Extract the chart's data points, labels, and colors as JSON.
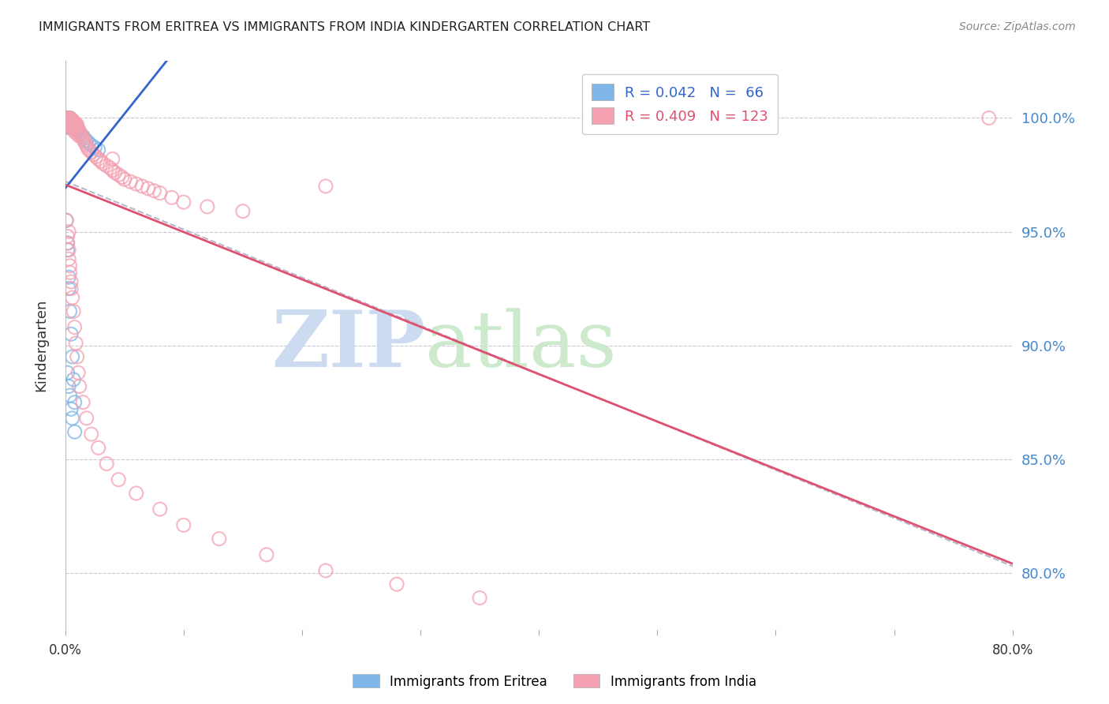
{
  "title": "IMMIGRANTS FROM ERITREA VS IMMIGRANTS FROM INDIA KINDERGARTEN CORRELATION CHART",
  "source": "Source: ZipAtlas.com",
  "ylabel": "Kindergarten",
  "ytick_labels": [
    "100.0%",
    "95.0%",
    "90.0%",
    "85.0%",
    "80.0%"
  ],
  "ytick_values": [
    1.0,
    0.95,
    0.9,
    0.85,
    0.8
  ],
  "xlim": [
    0.0,
    0.8
  ],
  "ylim": [
    0.775,
    1.025
  ],
  "R_eritrea": 0.042,
  "N_eritrea": 66,
  "R_india": 0.409,
  "N_india": 123,
  "color_eritrea": "#7EB6E8",
  "color_india": "#F4A0B0",
  "trend_color_eritrea": "#3366CC",
  "trend_color_india": "#E05070",
  "trend_color_dash": "#B8B8CC",
  "background_color": "#ffffff",
  "watermark_zip": "ZIP",
  "watermark_atlas": "atlas",
  "watermark_color_zip": "#C8D8F0",
  "watermark_color_atlas": "#D0E8D0",
  "eritrea_x": [
    0.001,
    0.001,
    0.001,
    0.001,
    0.001,
    0.002,
    0.002,
    0.002,
    0.002,
    0.002,
    0.002,
    0.002,
    0.003,
    0.003,
    0.003,
    0.003,
    0.003,
    0.003,
    0.004,
    0.004,
    0.004,
    0.004,
    0.004,
    0.005,
    0.005,
    0.005,
    0.005,
    0.006,
    0.006,
    0.006,
    0.006,
    0.007,
    0.007,
    0.007,
    0.008,
    0.008,
    0.009,
    0.009,
    0.01,
    0.01,
    0.011,
    0.012,
    0.013,
    0.015,
    0.016,
    0.018,
    0.02,
    0.022,
    0.025,
    0.028,
    0.001,
    0.002,
    0.002,
    0.003,
    0.003,
    0.004,
    0.005,
    0.006,
    0.007,
    0.008,
    0.002,
    0.003,
    0.004,
    0.005,
    0.006,
    0.008
  ],
  "eritrea_y": [
    1.0,
    1.0,
    0.999,
    0.998,
    0.997,
    1.0,
    1.0,
    0.999,
    0.999,
    0.998,
    0.997,
    0.996,
    1.0,
    0.999,
    0.999,
    0.998,
    0.997,
    0.996,
    1.0,
    0.999,
    0.998,
    0.997,
    0.996,
    0.999,
    0.998,
    0.997,
    0.996,
    0.999,
    0.998,
    0.997,
    0.996,
    0.998,
    0.997,
    0.996,
    0.997,
    0.996,
    0.997,
    0.996,
    0.996,
    0.995,
    0.995,
    0.994,
    0.993,
    0.992,
    0.991,
    0.99,
    0.989,
    0.988,
    0.987,
    0.986,
    0.955,
    0.945,
    0.942,
    0.93,
    0.925,
    0.915,
    0.905,
    0.895,
    0.885,
    0.875,
    0.888,
    0.882,
    0.878,
    0.872,
    0.868,
    0.862
  ],
  "india_x": [
    0.001,
    0.001,
    0.001,
    0.001,
    0.001,
    0.002,
    0.002,
    0.002,
    0.002,
    0.002,
    0.002,
    0.002,
    0.002,
    0.002,
    0.002,
    0.003,
    0.003,
    0.003,
    0.003,
    0.003,
    0.003,
    0.003,
    0.004,
    0.004,
    0.004,
    0.004,
    0.004,
    0.004,
    0.005,
    0.005,
    0.005,
    0.005,
    0.005,
    0.006,
    0.006,
    0.006,
    0.006,
    0.007,
    0.007,
    0.007,
    0.008,
    0.008,
    0.008,
    0.009,
    0.009,
    0.01,
    0.01,
    0.011,
    0.012,
    0.013,
    0.014,
    0.015,
    0.016,
    0.017,
    0.018,
    0.019,
    0.02,
    0.022,
    0.024,
    0.026,
    0.028,
    0.03,
    0.032,
    0.035,
    0.038,
    0.04,
    0.042,
    0.045,
    0.048,
    0.05,
    0.055,
    0.06,
    0.065,
    0.07,
    0.075,
    0.08,
    0.09,
    0.1,
    0.12,
    0.15,
    0.001,
    0.002,
    0.002,
    0.003,
    0.003,
    0.004,
    0.004,
    0.005,
    0.005,
    0.006,
    0.007,
    0.008,
    0.009,
    0.01,
    0.011,
    0.012,
    0.015,
    0.018,
    0.022,
    0.028,
    0.035,
    0.045,
    0.06,
    0.08,
    0.1,
    0.13,
    0.17,
    0.22,
    0.28,
    0.35,
    0.002,
    0.003,
    0.004,
    0.003,
    0.22,
    0.04,
    0.78,
    0.005,
    0.006,
    0.007,
    0.008,
    0.01,
    0.012
  ],
  "india_y": [
    1.0,
    1.0,
    1.0,
    0.999,
    0.998,
    1.0,
    1.0,
    1.0,
    0.999,
    0.999,
    0.999,
    0.998,
    0.998,
    0.997,
    0.996,
    1.0,
    0.999,
    0.999,
    0.999,
    0.998,
    0.998,
    0.997,
    1.0,
    0.999,
    0.999,
    0.998,
    0.998,
    0.997,
    0.999,
    0.999,
    0.998,
    0.998,
    0.997,
    0.999,
    0.998,
    0.998,
    0.997,
    0.998,
    0.997,
    0.996,
    0.998,
    0.997,
    0.996,
    0.997,
    0.996,
    0.997,
    0.996,
    0.995,
    0.994,
    0.993,
    0.992,
    0.991,
    0.99,
    0.989,
    0.988,
    0.987,
    0.986,
    0.985,
    0.984,
    0.983,
    0.982,
    0.981,
    0.98,
    0.979,
    0.978,
    0.977,
    0.976,
    0.975,
    0.974,
    0.973,
    0.972,
    0.971,
    0.97,
    0.969,
    0.968,
    0.967,
    0.965,
    0.963,
    0.961,
    0.959,
    0.955,
    0.948,
    0.945,
    0.942,
    0.938,
    0.935,
    0.932,
    0.928,
    0.925,
    0.921,
    0.915,
    0.908,
    0.901,
    0.895,
    0.888,
    0.882,
    0.875,
    0.868,
    0.861,
    0.855,
    0.848,
    0.841,
    0.835,
    0.828,
    0.821,
    0.815,
    0.808,
    0.801,
    0.795,
    0.789,
    0.999,
    0.999,
    0.998,
    0.95,
    0.97,
    0.982,
    1.0,
    0.997,
    0.996,
    0.995,
    0.994,
    0.993,
    0.992
  ]
}
